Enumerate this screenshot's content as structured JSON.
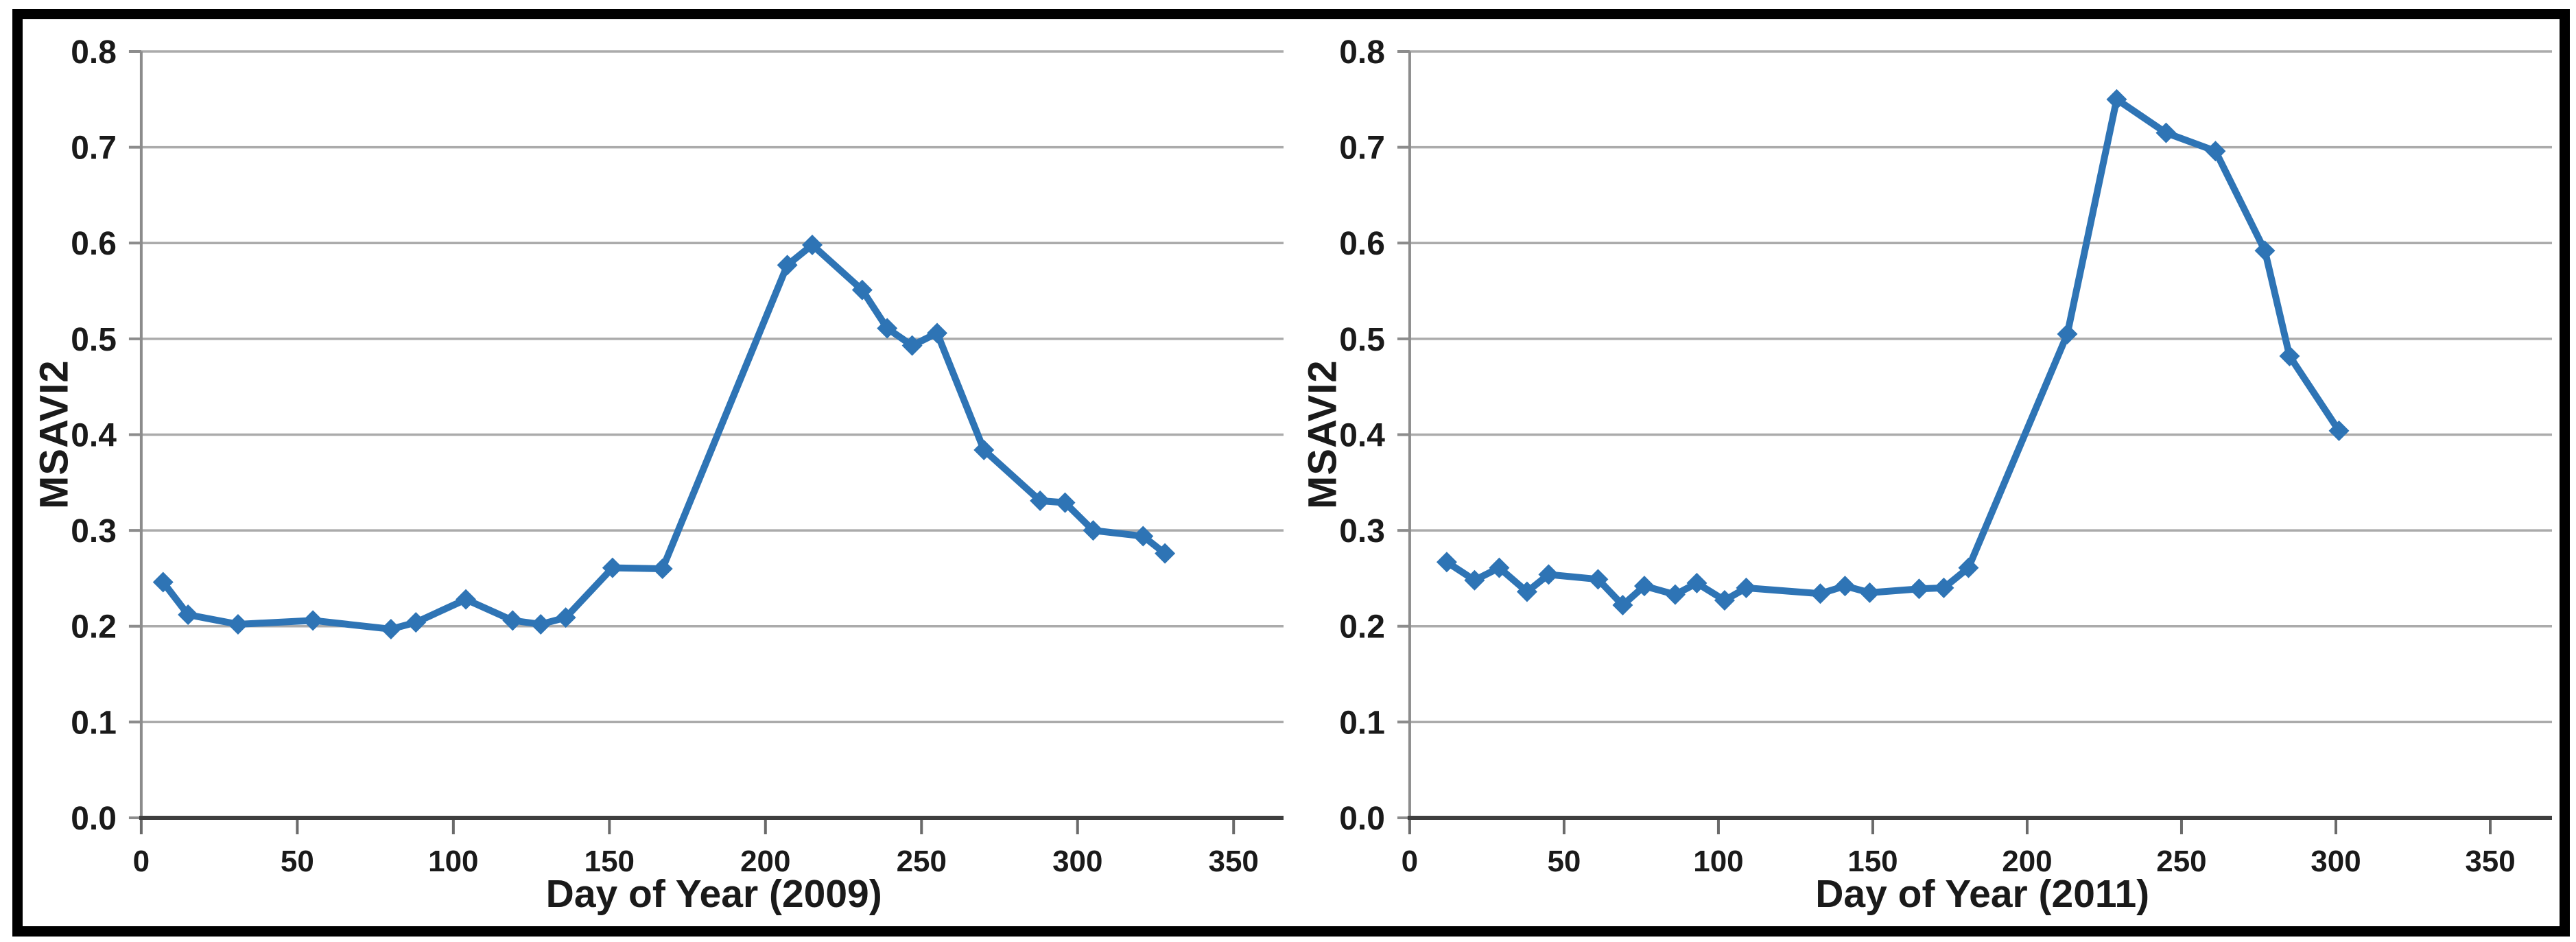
{
  "figure": {
    "background": "#ffffff",
    "frame_color": "#000000",
    "line_color": "#2e74b5",
    "marker_shape": "diamond",
    "gridline_color": "#ababab",
    "y_axis_color": "#8c8c8c",
    "x_axis_color": "#3f3f3f",
    "x_tick_color": "#6a6a6a",
    "label_color": "#1a1a1a"
  },
  "chart_data": [
    {
      "type": "line",
      "title": "",
      "xlabel": "Day of Year (2009)",
      "ylabel": "MSAVI2",
      "xlim": [
        0,
        366
      ],
      "ylim": [
        0,
        0.8
      ],
      "grid": "horizontal",
      "legend": "none",
      "xticks": {
        "values": [
          0,
          50,
          100,
          150,
          200,
          250,
          300,
          350
        ],
        "labels": [
          "0",
          "50",
          "100",
          "150",
          "200",
          "250",
          "300",
          "350"
        ]
      },
      "yticks": {
        "values": [
          0,
          0.1,
          0.2,
          0.3,
          0.4,
          0.5,
          0.6,
          0.7,
          0.8
        ],
        "labels": [
          "0.0",
          "0.1",
          "0.2",
          "0.3",
          "0.4",
          "0.5",
          "0.6",
          "0.7",
          "0.8"
        ]
      },
      "series": [
        {
          "name": "MSAVI2 (2009)",
          "x": [
            7,
            15,
            31,
            55,
            80,
            88,
            104,
            119,
            128,
            136,
            151,
            167,
            207,
            215,
            231,
            239,
            247,
            255,
            270,
            288,
            296,
            305,
            321,
            328
          ],
          "y": [
            0.246,
            0.212,
            0.202,
            0.206,
            0.197,
            0.204,
            0.228,
            0.206,
            0.202,
            0.209,
            0.261,
            0.26,
            0.577,
            0.598,
            0.551,
            0.511,
            0.493,
            0.506,
            0.384,
            0.331,
            0.329,
            0.3,
            0.294,
            0.276
          ]
        }
      ]
    },
    {
      "type": "line",
      "title": "",
      "xlabel": "Day of Year (2011)",
      "ylabel": "MSAVI2",
      "xlim": [
        0,
        370
      ],
      "ylim": [
        0,
        0.8
      ],
      "grid": "horizontal",
      "legend": "none",
      "xticks": {
        "values": [
          0,
          50,
          100,
          150,
          200,
          250,
          300,
          350
        ],
        "labels": [
          "0",
          "50",
          "100",
          "150",
          "200",
          "250",
          "300",
          "350"
        ]
      },
      "yticks": {
        "values": [
          0,
          0.1,
          0.2,
          0.3,
          0.4,
          0.5,
          0.6,
          0.7,
          0.8
        ],
        "labels": [
          "0.0",
          "0.1",
          "0.2",
          "0.3",
          "0.4",
          "0.5",
          "0.6",
          "0.7",
          "0.8"
        ]
      },
      "series": [
        {
          "name": "MSAVI2 (2011)",
          "x": [
            12,
            21,
            29,
            38,
            45,
            61,
            69,
            76,
            86,
            93,
            102,
            109,
            133,
            141,
            149,
            165,
            173,
            181,
            213,
            229,
            245,
            261,
            277,
            285,
            301
          ],
          "y": [
            0.267,
            0.248,
            0.261,
            0.236,
            0.254,
            0.249,
            0.222,
            0.242,
            0.233,
            0.245,
            0.227,
            0.24,
            0.234,
            0.242,
            0.235,
            0.239,
            0.24,
            0.261,
            0.505,
            0.75,
            0.715,
            0.696,
            0.592,
            0.482,
            0.404
          ]
        }
      ]
    }
  ]
}
